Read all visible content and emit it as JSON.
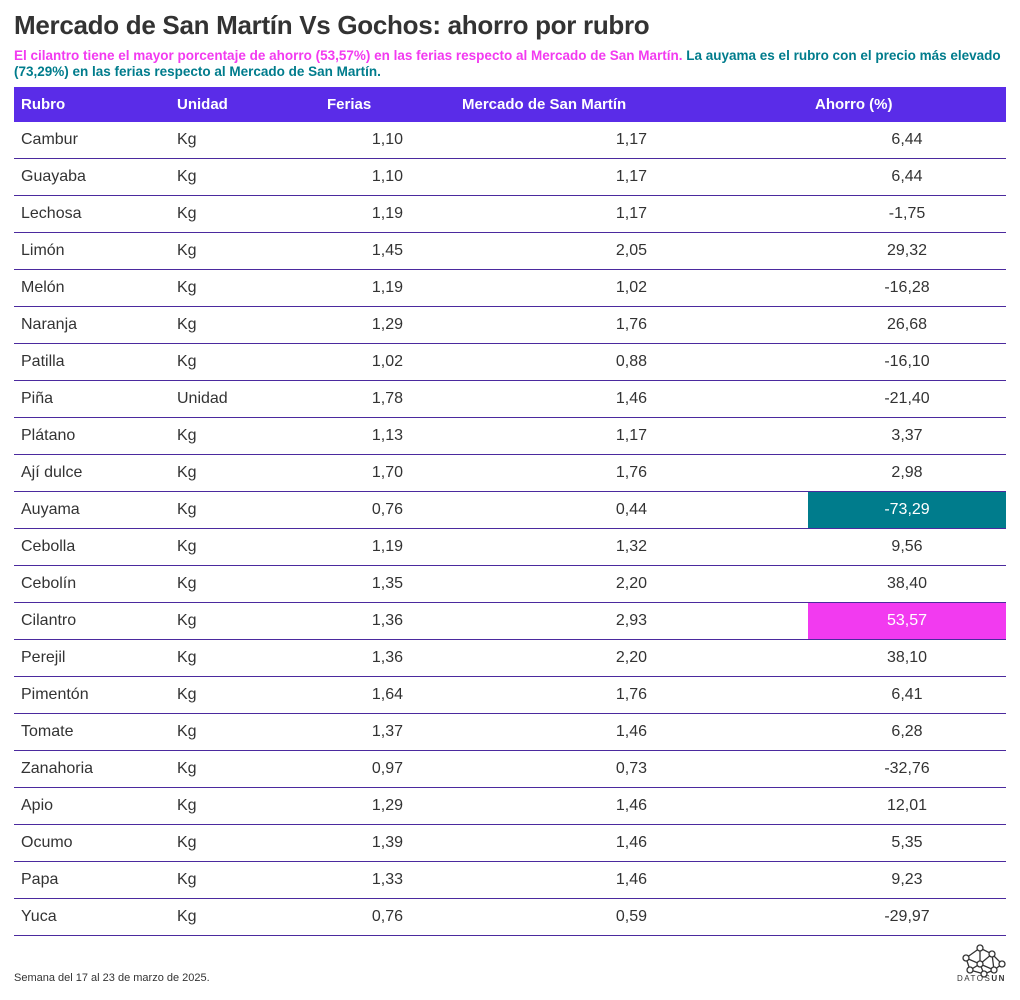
{
  "header": {
    "title": "Mercado de San Martín Vs Gochos: ahorro por rubro",
    "subtitle_highlight_1": "El cilantro tiene el mayor porcentaje de ahorro (53,57%) en las ferias respecto al Mercado de San Martín.",
    "subtitle_highlight_2": "La auyama es el rubro con el precio más elevado (73,29%) en las ferias respecto al Mercado de San Martín.",
    "color_1": "#f23af0",
    "color_2": "#007c8c"
  },
  "table": {
    "columns": [
      "Rubro",
      "Unidad",
      "Ferias",
      "Mercado de San Martín",
      "Ahorro (%)"
    ],
    "rows": [
      [
        "Cambur",
        "Kg",
        "1,10",
        "1,17",
        "6,44"
      ],
      [
        "Guayaba",
        "Kg",
        "1,10",
        "1,17",
        "6,44"
      ],
      [
        "Lechosa",
        "Kg",
        "1,19",
        "1,17",
        "-1,75"
      ],
      [
        "Limón",
        "Kg",
        "1,45",
        "2,05",
        "29,32"
      ],
      [
        "Melón",
        "Kg",
        "1,19",
        "1,02",
        "-16,28"
      ],
      [
        "Naranja",
        "Kg",
        "1,29",
        "1,76",
        "26,68"
      ],
      [
        "Patilla",
        "Kg",
        "1,02",
        "0,88",
        "-16,10"
      ],
      [
        "Piña",
        "Unidad",
        "1,78",
        "1,46",
        "-21,40"
      ],
      [
        "Plátano",
        "Kg",
        "1,13",
        "1,17",
        "3,37"
      ],
      [
        "Ají dulce",
        "Kg",
        "1,70",
        "1,76",
        "2,98"
      ],
      [
        "Auyama",
        "Kg",
        "0,76",
        "0,44",
        "-73,29"
      ],
      [
        "Cebolla",
        "Kg",
        "1,19",
        "1,32",
        "9,56"
      ],
      [
        "Cebolín",
        "Kg",
        "1,35",
        "2,20",
        "38,40"
      ],
      [
        "Cilantro",
        "Kg",
        "1,36",
        "2,93",
        "53,57"
      ],
      [
        "Perejil",
        "Kg",
        "1,36",
        "2,20",
        "38,10"
      ],
      [
        "Pimentón",
        "Kg",
        "1,64",
        "1,76",
        "6,41"
      ],
      [
        "Tomate",
        "Kg",
        "1,37",
        "1,46",
        "6,28"
      ],
      [
        "Zanahoria",
        "Kg",
        "0,97",
        "0,73",
        "-32,76"
      ],
      [
        "Apio",
        "Kg",
        "1,29",
        "1,46",
        "12,01"
      ],
      [
        "Ocumo",
        "Kg",
        "1,39",
        "1,46",
        "5,35"
      ],
      [
        "Papa",
        "Kg",
        "1,33",
        "1,46",
        "9,23"
      ],
      [
        "Yuca",
        "Kg",
        "0,76",
        "0,59",
        "-29,97"
      ]
    ],
    "highlights": [
      {
        "row": 10,
        "color": "#007c8c"
      },
      {
        "row": 13,
        "color": "#f23af0"
      }
    ]
  },
  "footer": {
    "note": "Semana del 17 al 23 de marzo de 2025.",
    "logo_1": "DATOS",
    "logo_2": "UN"
  }
}
